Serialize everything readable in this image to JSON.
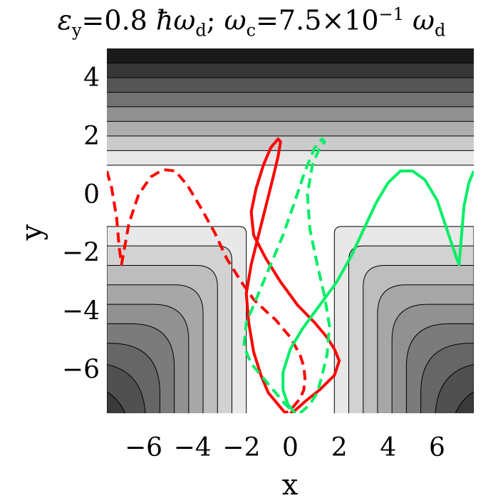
{
  "title": {
    "eps_symbol": "ε",
    "eps_sub": "y",
    "eps_value": "=0.8 ",
    "hbar_omega": "ħω",
    "hbar_sub": "d",
    "separator": "; ",
    "omega_c": "ω",
    "omega_c_sub": "c",
    "omega_c_value": "=7.5×10",
    "exponent": "−1",
    "omega_d": " ω",
    "omega_d_sub": "d"
  },
  "chart_data": {
    "type": "line",
    "title": "εy=0.8 ħωd; ωc=7.5×10−1 ωd",
    "xlabel": "x",
    "ylabel": "y",
    "xlim": [
      -7.5,
      7.5
    ],
    "ylim": [
      -7.5,
      5.0
    ],
    "xticks": [
      -6,
      -4,
      -2,
      0,
      2,
      4,
      6
    ],
    "xtick_labels": [
      "−6",
      "−4",
      "−2",
      "0",
      "2",
      "4",
      "6"
    ],
    "yticks": [
      -6,
      -4,
      -2,
      0,
      2,
      4
    ],
    "ytick_labels": [
      "−6",
      "−4",
      "−2",
      "0",
      "2",
      "4"
    ],
    "background": "contour",
    "contour_levels_upper_y": [
      1.0,
      1.5,
      2.0,
      2.5,
      3.0,
      3.5,
      4.0,
      4.5
    ],
    "colors": {
      "red": "#ff0000",
      "green": "#00ee66",
      "contour_light": "#e8e8e8",
      "contour_dark": "#1a1a1a"
    },
    "series": [
      {
        "style": "dashed",
        "color": "#ff0000",
        "x": [
          -7.5,
          -7.3,
          -7.1,
          -7.0,
          -6.9,
          -6.6,
          -6.2,
          -5.7,
          -5.2,
          -4.7,
          -4.2,
          -3.7,
          -3.1,
          -2.6,
          -2.0,
          -1.5,
          -1.0,
          -0.6,
          -0.3,
          0.0,
          0.2,
          0.4,
          0.55,
          0.6,
          0.55,
          0.4,
          0.1,
          -0.2
        ],
        "y": [
          0.8,
          0.2,
          -0.8,
          -1.8,
          -2.4,
          -1.0,
          0.0,
          0.6,
          0.85,
          0.8,
          0.3,
          -0.4,
          -1.3,
          -2.2,
          -3.0,
          -3.6,
          -4.0,
          -4.3,
          -4.6,
          -4.9,
          -5.2,
          -5.5,
          -5.9,
          -6.3,
          -6.7,
          -7.0,
          -7.3,
          -7.5
        ]
      },
      {
        "style": "solid",
        "color": "#ff0000",
        "x": [
          -0.2,
          -0.5,
          -0.9,
          -1.2,
          -1.5,
          -1.7,
          -1.8,
          -1.6,
          -1.3,
          -1.0,
          -0.7,
          -0.5,
          -0.4,
          -0.5,
          -0.8,
          -1.1,
          -1.4,
          -1.6,
          -1.5,
          -1.0,
          -0.4,
          0.3,
          1.0,
          1.5,
          1.8,
          2.0,
          1.8,
          1.2,
          0.6,
          0.2,
          0.0
        ],
        "y": [
          -7.5,
          -7.2,
          -6.8,
          -6.2,
          -5.4,
          -4.4,
          -3.4,
          -2.4,
          -1.4,
          -0.4,
          0.6,
          1.3,
          1.8,
          1.9,
          1.6,
          1.0,
          0.2,
          -0.6,
          -1.4,
          -2.2,
          -3.0,
          -3.8,
          -4.4,
          -4.9,
          -5.3,
          -5.7,
          -6.2,
          -6.7,
          -7.1,
          -7.4,
          -7.5
        ]
      },
      {
        "style": "dashed",
        "color": "#00ee66",
        "x": [
          0.4,
          0.8,
          1.1,
          1.3,
          1.5,
          1.6,
          1.4,
          1.1,
          0.8,
          0.7,
          0.9,
          1.2,
          1.4,
          1.3,
          1.0,
          0.6,
          0.2,
          -0.3,
          -0.9,
          -1.4,
          -1.8,
          -1.9,
          -1.6,
          -1.1,
          -0.6,
          -0.2,
          0.2
        ],
        "y": [
          -7.5,
          -7.2,
          -6.8,
          -6.2,
          -5.5,
          -4.5,
          -3.5,
          -2.4,
          -1.2,
          0.0,
          1.0,
          1.6,
          1.8,
          1.9,
          1.6,
          0.8,
          -0.2,
          -1.4,
          -2.6,
          -3.6,
          -4.4,
          -5.2,
          -5.8,
          -6.3,
          -6.8,
          -7.2,
          -7.5
        ]
      },
      {
        "style": "solid",
        "color": "#00ee66",
        "x": [
          0.2,
          -0.1,
          -0.3,
          -0.3,
          0.0,
          0.5,
          1.2,
          1.9,
          2.5,
          3.0,
          3.5,
          4.0,
          4.5,
          5.0,
          5.5,
          6.0,
          6.4,
          6.8,
          6.9,
          7.0,
          7.1,
          7.3,
          7.5
        ],
        "y": [
          -7.5,
          -7.2,
          -6.7,
          -6.1,
          -5.3,
          -4.6,
          -3.8,
          -3.0,
          -2.1,
          -1.2,
          -0.3,
          0.4,
          0.8,
          0.8,
          0.5,
          -0.2,
          -1.2,
          -2.2,
          -2.4,
          -1.4,
          -0.4,
          0.4,
          0.8
        ]
      }
    ]
  }
}
